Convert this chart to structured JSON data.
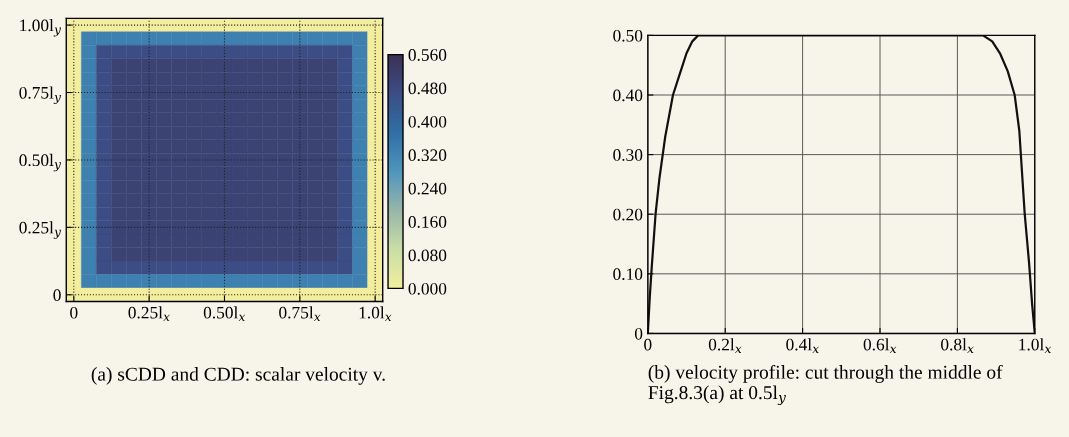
{
  "chart_data": [
    {
      "type": "heatmap",
      "annotations": [
        "(a) sCDD and CDD: scalar velocity v."
      ],
      "categories": [
        "0",
        null,
        null,
        null,
        null,
        "0.25l$_{x}$",
        null,
        null,
        null,
        null,
        "0.50l$_{x}$",
        null,
        null,
        null,
        null,
        "0.75l$_{x}$",
        null,
        null,
        null,
        null,
        "1.0l$_{x}$"
      ],
      "y_categories": [
        "1.00l$_{y}$",
        null,
        null,
        null,
        null,
        "0.75l$_{y}$",
        null,
        null,
        null,
        null,
        "0.50l$_{y}$",
        null,
        null,
        null,
        null,
        "0.25l$_{y}$",
        null,
        null,
        null,
        null,
        "0"
      ],
      "grid": true,
      "clim": [
        0,
        0.56
      ],
      "cticks": [
        {
          "value": 0,
          "label": "0.000"
        },
        {
          "value": 0.08,
          "label": "0.080"
        },
        {
          "value": 0.16,
          "label": "0.160"
        },
        {
          "value": 0.24,
          "label": "0.240"
        },
        {
          "value": 0.32,
          "label": "0.320"
        },
        {
          "value": 0.4,
          "label": "0.400"
        },
        {
          "value": 0.48,
          "label": "0.480"
        },
        {
          "value": 0.56,
          "label": "0.560"
        }
      ],
      "colors": [
        "#f2ee9e",
        "#c9dea6",
        "#98b5aa",
        "#4f95bd",
        "#2f6fa5",
        "#3c4d86",
        "#3a3155"
      ],
      "cells": [
        [
          0,
          0,
          0,
          0,
          0,
          0,
          0,
          0,
          0,
          0,
          0,
          0,
          0,
          0,
          0,
          0,
          0,
          0,
          0,
          0,
          0
        ],
        [
          0,
          0.33,
          0.33,
          0.33,
          0.33,
          0.33,
          0.33,
          0.33,
          0.33,
          0.33,
          0.33,
          0.33,
          0.33,
          0.33,
          0.33,
          0.33,
          0.33,
          0.33,
          0.33,
          0.33,
          0
        ],
        [
          0,
          0.33,
          0.47,
          0.47,
          0.47,
          0.47,
          0.47,
          0.47,
          0.47,
          0.47,
          0.47,
          0.47,
          0.47,
          0.47,
          0.47,
          0.47,
          0.47,
          0.47,
          0.47,
          0.33,
          0
        ],
        [
          0,
          0.33,
          0.47,
          0.5,
          0.5,
          0.5,
          0.5,
          0.5,
          0.5,
          0.5,
          0.5,
          0.5,
          0.5,
          0.5,
          0.5,
          0.5,
          0.5,
          0.5,
          0.47,
          0.33,
          0
        ],
        [
          0,
          0.33,
          0.47,
          0.5,
          0.5,
          0.5,
          0.5,
          0.5,
          0.5,
          0.5,
          0.5,
          0.5,
          0.5,
          0.5,
          0.5,
          0.5,
          0.5,
          0.5,
          0.47,
          0.33,
          0
        ],
        [
          0,
          0.33,
          0.47,
          0.5,
          0.5,
          0.5,
          0.5,
          0.5,
          0.5,
          0.5,
          0.5,
          0.5,
          0.5,
          0.5,
          0.5,
          0.5,
          0.5,
          0.5,
          0.47,
          0.33,
          0
        ],
        [
          0,
          0.33,
          0.47,
          0.5,
          0.5,
          0.5,
          0.5,
          0.5,
          0.5,
          0.5,
          0.5,
          0.5,
          0.5,
          0.5,
          0.5,
          0.5,
          0.5,
          0.5,
          0.47,
          0.33,
          0
        ],
        [
          0,
          0.33,
          0.47,
          0.5,
          0.5,
          0.5,
          0.5,
          0.5,
          0.5,
          0.5,
          0.5,
          0.5,
          0.5,
          0.5,
          0.5,
          0.5,
          0.5,
          0.5,
          0.47,
          0.33,
          0
        ],
        [
          0,
          0.33,
          0.47,
          0.5,
          0.5,
          0.5,
          0.5,
          0.5,
          0.5,
          0.5,
          0.5,
          0.5,
          0.5,
          0.5,
          0.5,
          0.5,
          0.5,
          0.5,
          0.47,
          0.33,
          0
        ],
        [
          0,
          0.33,
          0.47,
          0.5,
          0.5,
          0.5,
          0.5,
          0.5,
          0.5,
          0.5,
          0.5,
          0.5,
          0.5,
          0.5,
          0.5,
          0.5,
          0.5,
          0.5,
          0.47,
          0.33,
          0
        ],
        [
          0,
          0.33,
          0.47,
          0.5,
          0.5,
          0.5,
          0.5,
          0.5,
          0.5,
          0.5,
          0.5,
          0.5,
          0.5,
          0.5,
          0.5,
          0.5,
          0.5,
          0.5,
          0.47,
          0.33,
          0
        ],
        [
          0,
          0.33,
          0.47,
          0.5,
          0.5,
          0.5,
          0.5,
          0.5,
          0.5,
          0.5,
          0.5,
          0.5,
          0.5,
          0.5,
          0.5,
          0.5,
          0.5,
          0.5,
          0.47,
          0.33,
          0
        ],
        [
          0,
          0.33,
          0.47,
          0.5,
          0.5,
          0.5,
          0.5,
          0.5,
          0.5,
          0.5,
          0.5,
          0.5,
          0.5,
          0.5,
          0.5,
          0.5,
          0.5,
          0.5,
          0.47,
          0.33,
          0
        ],
        [
          0,
          0.33,
          0.47,
          0.5,
          0.5,
          0.5,
          0.5,
          0.5,
          0.5,
          0.5,
          0.5,
          0.5,
          0.5,
          0.5,
          0.5,
          0.5,
          0.5,
          0.5,
          0.47,
          0.33,
          0
        ],
        [
          0,
          0.33,
          0.47,
          0.5,
          0.5,
          0.5,
          0.5,
          0.5,
          0.5,
          0.5,
          0.5,
          0.5,
          0.5,
          0.5,
          0.5,
          0.5,
          0.5,
          0.5,
          0.47,
          0.33,
          0
        ],
        [
          0,
          0.33,
          0.47,
          0.5,
          0.5,
          0.5,
          0.5,
          0.5,
          0.5,
          0.5,
          0.5,
          0.5,
          0.5,
          0.5,
          0.5,
          0.5,
          0.5,
          0.5,
          0.47,
          0.33,
          0
        ],
        [
          0,
          0.33,
          0.47,
          0.5,
          0.5,
          0.5,
          0.5,
          0.5,
          0.5,
          0.5,
          0.5,
          0.5,
          0.5,
          0.5,
          0.5,
          0.5,
          0.5,
          0.5,
          0.47,
          0.33,
          0
        ],
        [
          0,
          0.33,
          0.47,
          0.5,
          0.5,
          0.5,
          0.5,
          0.5,
          0.5,
          0.5,
          0.5,
          0.5,
          0.5,
          0.5,
          0.5,
          0.5,
          0.5,
          0.5,
          0.47,
          0.33,
          0
        ],
        [
          0,
          0.33,
          0.47,
          0.47,
          0.47,
          0.47,
          0.47,
          0.47,
          0.47,
          0.47,
          0.47,
          0.47,
          0.47,
          0.47,
          0.47,
          0.47,
          0.47,
          0.47,
          0.47,
          0.33,
          0
        ],
        [
          0,
          0.33,
          0.33,
          0.33,
          0.33,
          0.33,
          0.33,
          0.33,
          0.33,
          0.33,
          0.33,
          0.33,
          0.33,
          0.33,
          0.33,
          0.33,
          0.33,
          0.33,
          0.33,
          0.33,
          0
        ],
        [
          0,
          0,
          0,
          0,
          0,
          0,
          0,
          0,
          0,
          0,
          0,
          0,
          0,
          0,
          0,
          0,
          0,
          0,
          0,
          0,
          0
        ]
      ]
    },
    {
      "type": "line",
      "annotations": [
        "(b) velocity profile: cut through the middle of Fig.8.3(a) at 0.5l$_{y}$"
      ],
      "x": [
        0,
        0.005,
        0.01,
        0.02,
        0.03,
        0.045,
        0.065,
        0.085,
        0.1,
        0.115,
        0.13,
        0.2,
        0.4,
        0.6,
        0.8,
        0.866,
        0.89,
        0.91,
        0.93,
        0.948,
        0.96,
        0.974,
        0.985,
        0.993,
        1.0
      ],
      "series": [
        {
          "color": "#111111",
          "values": [
            0,
            0.06,
            0.11,
            0.2,
            0.26,
            0.33,
            0.4,
            0.44,
            0.47,
            0.49,
            0.5,
            0.5,
            0.5,
            0.5,
            0.5,
            0.5,
            0.49,
            0.47,
            0.44,
            0.4,
            0.34,
            0.2,
            0.12,
            0.05,
            0
          ]
        }
      ],
      "xlim": [
        0,
        1
      ],
      "ylim": [
        0,
        0.5
      ],
      "xticks": [
        {
          "value": 0,
          "label": "0"
        },
        {
          "value": 0.2,
          "label": "0.2l$_{x}$"
        },
        {
          "value": 0.4,
          "label": "0.4l$_{x}$"
        },
        {
          "value": 0.6,
          "label": "0.6l$_{x}$"
        },
        {
          "value": 0.8,
          "label": "0.8l$_{x}$"
        },
        {
          "value": 1,
          "label": "1.0l$_{x}$"
        }
      ],
      "yticks": [
        {
          "value": 0,
          "label": "0"
        },
        {
          "value": 0.1,
          "label": "0.10"
        },
        {
          "value": 0.2,
          "label": "0.20"
        },
        {
          "value": 0.3,
          "label": "0.30"
        },
        {
          "value": 0.4,
          "label": "0.40"
        },
        {
          "value": 0.5,
          "label": "0.50"
        }
      ],
      "grid": true
    }
  ]
}
